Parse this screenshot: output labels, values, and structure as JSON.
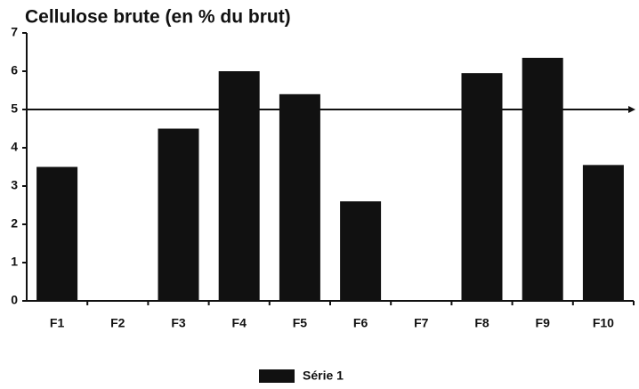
{
  "chart_data": {
    "type": "bar",
    "title": "Cellulose brute (en % du brut)",
    "categories": [
      "F1",
      "F2",
      "F3",
      "F4",
      "F5",
      "F6",
      "F7",
      "F8",
      "F9",
      "F10"
    ],
    "series": [
      {
        "name": "Série 1",
        "color": "#111111",
        "values": [
          3.5,
          0,
          4.5,
          6.0,
          5.4,
          2.6,
          0,
          5.95,
          6.35,
          3.55
        ]
      }
    ],
    "reference_line": 5,
    "ylim": [
      0,
      7
    ],
    "yticks": [
      0,
      1,
      2,
      3,
      4,
      5,
      6,
      7
    ],
    "grid": false,
    "legend": "bottom"
  }
}
